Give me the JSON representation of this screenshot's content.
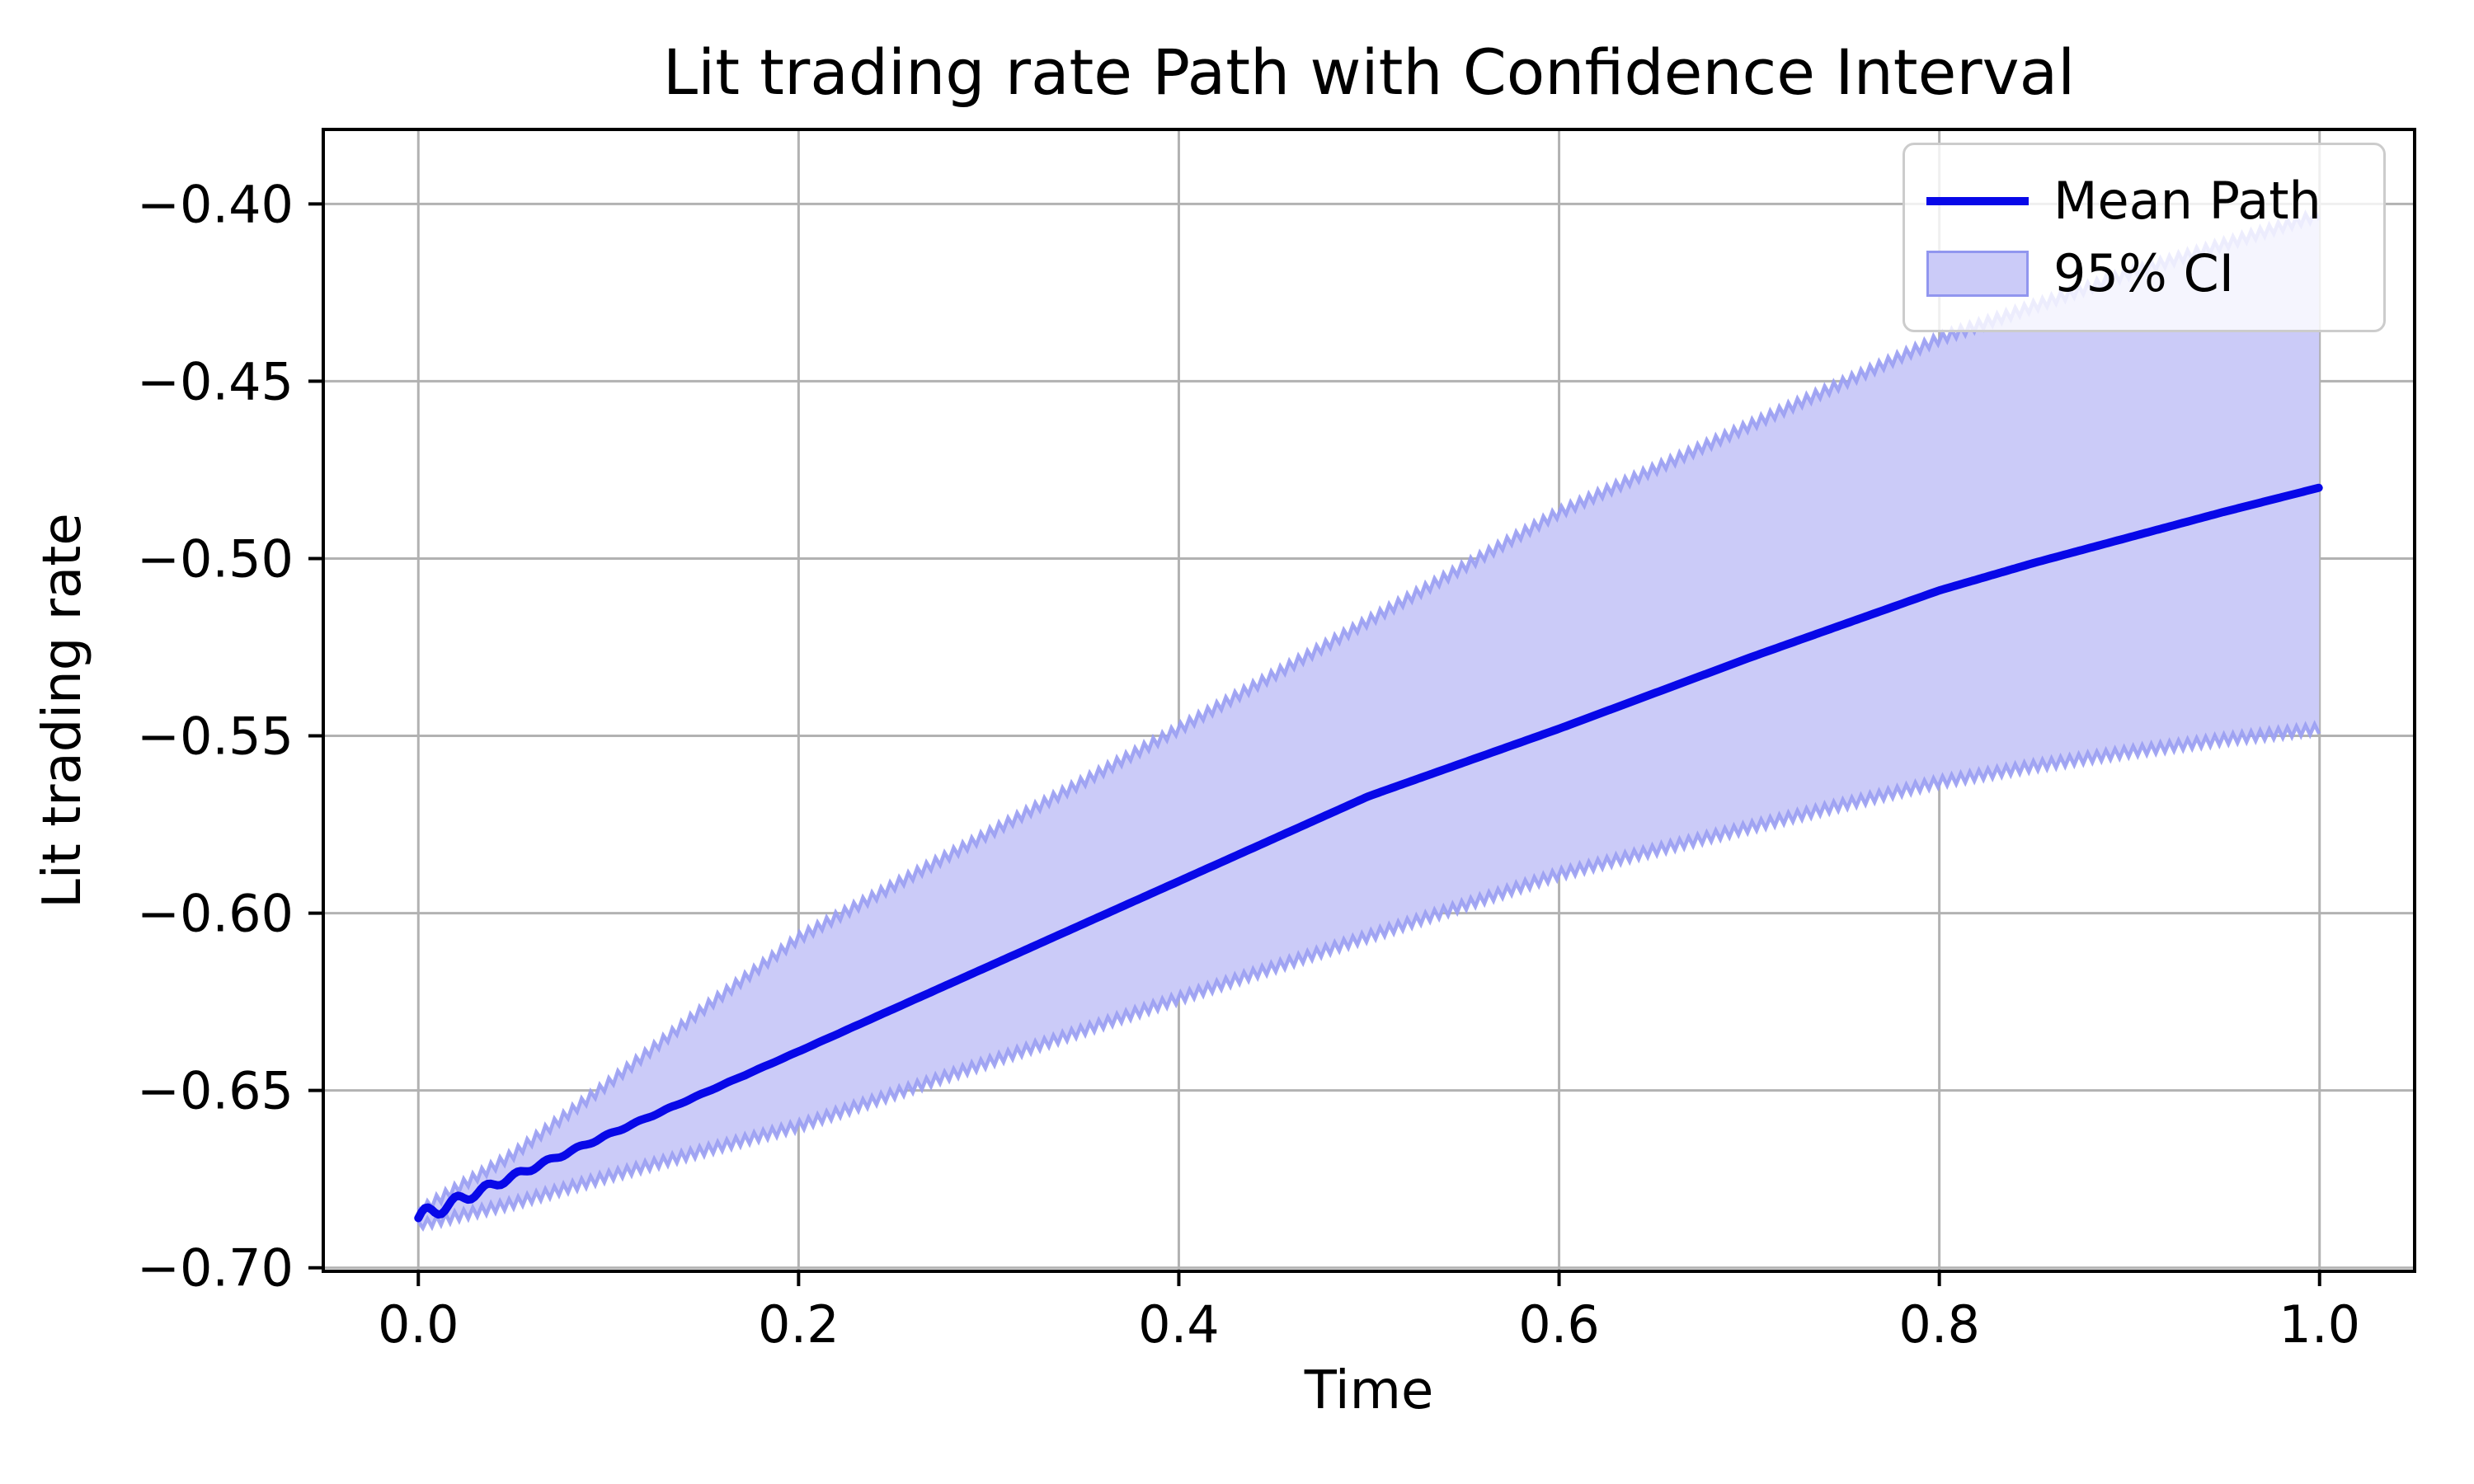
{
  "title": "Lit trading rate Path with Confidence Interval",
  "axes": {
    "xlabel": "Time",
    "ylabel": "Lit trading rate"
  },
  "legend": {
    "position": "upper right",
    "items": [
      {
        "label": "Mean Path",
        "swatch": "line-swatch"
      },
      {
        "label": "95% CI",
        "swatch": "patch-swatch"
      }
    ]
  },
  "chart_data": {
    "type": "line",
    "title": "Lit trading rate Path with Confidence Interval",
    "xlabel": "Time",
    "ylabel": "Lit trading rate",
    "x": [
      0.0,
      0.05,
      0.1,
      0.15,
      0.2,
      0.25,
      0.3,
      0.35,
      0.4,
      0.45,
      0.5,
      0.55,
      0.6,
      0.65,
      0.7,
      0.75,
      0.8,
      0.85,
      0.9,
      0.95,
      1.0
    ],
    "series": [
      {
        "name": "Mean Path",
        "values": [
          -0.686,
          -0.6742,
          -0.6625,
          -0.6508,
          -0.639,
          -0.627,
          -0.615,
          -0.603,
          -0.591,
          -0.579,
          -0.567,
          -0.5575,
          -0.548,
          -0.538,
          -0.528,
          -0.5185,
          -0.509,
          -0.5012,
          -0.494,
          -0.4868,
          -0.48
        ]
      },
      {
        "name": "95% CI upper",
        "values": [
          -0.684,
          -0.668,
          -0.648,
          -0.627,
          -0.607,
          -0.5922,
          -0.5775,
          -0.5628,
          -0.548,
          -0.5328,
          -0.5175,
          -0.5023,
          -0.487,
          -0.4748,
          -0.4625,
          -0.4503,
          -0.438,
          -0.4288,
          -0.4195,
          -0.4113,
          -0.403
        ]
      },
      {
        "name": "95% CI lower",
        "values": [
          -0.688,
          -0.6818,
          -0.6742,
          -0.667,
          -0.66,
          -0.651,
          -0.642,
          -0.633,
          -0.624,
          -0.6153,
          -0.6065,
          -0.5978,
          -0.589,
          -0.5823,
          -0.5758,
          -0.5693,
          -0.563,
          -0.5585,
          -0.5545,
          -0.551,
          -0.548
        ]
      }
    ],
    "xlim": [
      -0.05,
      1.05
    ],
    "ylim": [
      -0.701,
      -0.379
    ],
    "xticks": {
      "values": [
        0.0,
        0.2,
        0.4,
        0.6,
        0.8,
        1.0
      ],
      "labels": [
        "0.0",
        "0.2",
        "0.4",
        "0.6",
        "0.8",
        "1.0"
      ]
    },
    "yticks": {
      "values": [
        -0.4,
        -0.45,
        -0.5,
        -0.55,
        -0.6,
        -0.65,
        -0.7
      ],
      "labels": [
        "−0.40",
        "−0.45",
        "−0.50",
        "−0.55",
        "−0.60",
        "−0.65",
        "−0.70"
      ]
    },
    "grid": true,
    "legend_position": "upper right",
    "colors": {
      "mean_line": "#0808e8",
      "ci_fill": "#cbcbf8",
      "ci_edge": "#999df2",
      "grid": "#b2b2b2",
      "spine": "#000000",
      "background": "#ffffff"
    }
  }
}
